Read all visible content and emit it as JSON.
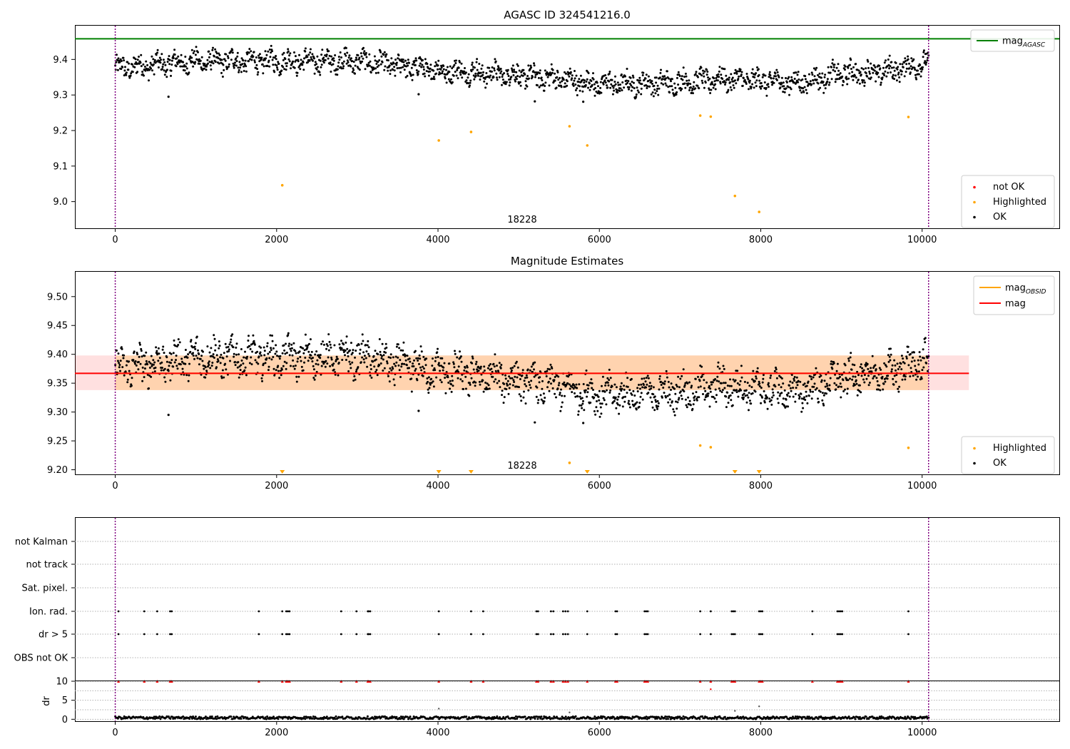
{
  "chart_data": [
    {
      "type": "scatter",
      "title": "AGASC ID 324541216.0",
      "xlim": [
        -500,
        11700
      ],
      "ylim": [
        8.925,
        9.495
      ],
      "x_ticks": [
        0,
        2000,
        4000,
        6000,
        8000,
        10000
      ],
      "y_ticks": [
        9.0,
        9.1,
        9.2,
        9.3,
        9.4
      ],
      "x_tick_labels": [
        "0",
        "2000",
        "4000",
        "6000",
        "8000",
        "10000"
      ],
      "y_tick_labels": [
        "9.0",
        "9.1",
        "9.2",
        "9.3",
        "9.4"
      ],
      "obsid_annotation": {
        "text": "18228",
        "x": 5000,
        "y": 8.95
      },
      "obs_boundaries": [
        0,
        10080
      ],
      "mag_agasc": 9.458,
      "ok_series": {
        "name": "OK",
        "color": "#000000",
        "x_max": 10080,
        "trend": [
          [
            0,
            9.375
          ],
          [
            1000,
            9.395
          ],
          [
            2000,
            9.395
          ],
          [
            3000,
            9.395
          ],
          [
            4000,
            9.37
          ],
          [
            5000,
            9.355
          ],
          [
            5500,
            9.345
          ],
          [
            6000,
            9.33
          ],
          [
            7000,
            9.335
          ],
          [
            7500,
            9.345
          ],
          [
            8000,
            9.34
          ],
          [
            8500,
            9.335
          ],
          [
            9000,
            9.36
          ],
          [
            9500,
            9.365
          ],
          [
            10080,
            9.39
          ]
        ]
      },
      "ok_outliers": [
        {
          "x": 660,
          "y": 9.295
        },
        {
          "x": 3760,
          "y": 9.302
        },
        {
          "x": 5200,
          "y": 9.282
        },
        {
          "x": 5800,
          "y": 9.281
        }
      ],
      "highlighted_points": [
        {
          "x": 2070,
          "y": 9.046
        },
        {
          "x": 4010,
          "y": 9.172
        },
        {
          "x": 4410,
          "y": 9.196
        },
        {
          "x": 5630,
          "y": 9.212
        },
        {
          "x": 5850,
          "y": 9.158
        },
        {
          "x": 7250,
          "y": 9.242
        },
        {
          "x": 7380,
          "y": 9.239
        },
        {
          "x": 7680,
          "y": 9.016
        },
        {
          "x": 7980,
          "y": 8.971
        },
        {
          "x": 9830,
          "y": 9.238
        }
      ],
      "legends": [
        {
          "entries": [
            {
              "label": "mag",
              "sub": "AGASC",
              "kind": "line",
              "color": "#008000"
            }
          ]
        },
        {
          "entries": [
            {
              "label": "not OK",
              "kind": "dot",
              "color": "#ff0000"
            },
            {
              "label": "Highlighted",
              "kind": "dot",
              "color": "#ffa500"
            },
            {
              "label": "OK",
              "kind": "dot",
              "color": "#000000"
            }
          ]
        }
      ]
    },
    {
      "type": "scatter",
      "title": "Magnitude Estimates",
      "xlim": [
        -500,
        11700
      ],
      "ylim": [
        9.192,
        9.543
      ],
      "x_ticks": [
        0,
        2000,
        4000,
        6000,
        8000,
        10000
      ],
      "y_ticks": [
        9.2,
        9.25,
        9.3,
        9.35,
        9.4,
        9.45,
        9.5
      ],
      "x_tick_labels": [
        "0",
        "2000",
        "4000",
        "6000",
        "8000",
        "10000"
      ],
      "y_tick_labels": [
        "9.20",
        "9.25",
        "9.30",
        "9.35",
        "9.40",
        "9.45",
        "9.50"
      ],
      "obsid_annotation": {
        "text": "18228",
        "x": 5000,
        "y": 9.208
      },
      "obs_boundaries": [
        0,
        10080
      ],
      "mag": 9.367,
      "mag_band": [
        9.338,
        9.398
      ],
      "band_x": [
        -500,
        10580
      ],
      "mag_obsid": {
        "value": 9.367,
        "x": [
          0,
          10080
        ],
        "band": [
          9.338,
          9.398
        ]
      },
      "ok_series": {
        "name": "OK",
        "color": "#000000",
        "x_max": 10080,
        "trend": [
          [
            0,
            9.375
          ],
          [
            1000,
            9.395
          ],
          [
            2000,
            9.395
          ],
          [
            3000,
            9.395
          ],
          [
            4000,
            9.37
          ],
          [
            5000,
            9.355
          ],
          [
            5500,
            9.345
          ],
          [
            6000,
            9.33
          ],
          [
            7000,
            9.335
          ],
          [
            7500,
            9.345
          ],
          [
            8000,
            9.34
          ],
          [
            8500,
            9.335
          ],
          [
            9000,
            9.36
          ],
          [
            9500,
            9.365
          ],
          [
            10080,
            9.39
          ]
        ]
      },
      "ok_outliers": [
        {
          "x": 660,
          "y": 9.295
        },
        {
          "x": 3760,
          "y": 9.302
        },
        {
          "x": 5200,
          "y": 9.282
        },
        {
          "x": 5800,
          "y": 9.281
        }
      ],
      "highlighted_points": [
        {
          "x": 5630,
          "y": 9.212
        },
        {
          "x": 7250,
          "y": 9.242
        },
        {
          "x": 7380,
          "y": 9.239
        },
        {
          "x": 9830,
          "y": 9.238
        }
      ],
      "clipped_markers_x": [
        2070,
        4010,
        4410,
        5850,
        7680,
        7980
      ],
      "legends": [
        {
          "entries": [
            {
              "label": "mag",
              "sub": "OBSID",
              "kind": "line",
              "color": "#ffa500"
            },
            {
              "label": "mag",
              "kind": "line",
              "color": "#ff0000"
            }
          ]
        },
        {
          "entries": [
            {
              "label": "Highlighted",
              "kind": "dot",
              "color": "#ffa500"
            },
            {
              "label": "OK",
              "kind": "dot",
              "color": "#000000"
            }
          ]
        }
      ]
    },
    {
      "type": "scatter",
      "xlim": [
        -500,
        11700
      ],
      "flag_rows": [
        "not Kalman",
        "not track",
        "Sat. pixel.",
        "Ion. rad.",
        "dr > 5",
        "OBS not OK"
      ],
      "flagged_x": [
        40,
        360,
        520,
        680,
        700,
        1780,
        2070,
        2120,
        2140,
        2160,
        2800,
        2990,
        3130,
        3140,
        3160,
        4010,
        4410,
        4560,
        5220,
        5240,
        5400,
        5430,
        5550,
        5580,
        5610,
        5850,
        6200,
        6220,
        6560,
        6580,
        6600,
        7250,
        7380,
        7640,
        7660,
        7680,
        7980,
        8000,
        8020,
        8640,
        8950,
        8970,
        8990,
        9010,
        9830
      ],
      "obs_boundaries": [
        0,
        10080
      ],
      "dr": {
        "ylabel": "dr",
        "ylim": [
          -0.5,
          10
        ],
        "y_ticks": [
          0,
          5,
          10
        ],
        "y_tick_labels": [
          "0",
          "5",
          "10"
        ],
        "baseline_mean": 0.4,
        "spikes": [
          {
            "x": 4010,
            "y": 2.8
          },
          {
            "x": 5630,
            "y": 1.8
          },
          {
            "x": 7380,
            "y": 7.9
          },
          {
            "x": 7680,
            "y": 2.2
          },
          {
            "x": 7980,
            "y": 3.4
          }
        ],
        "clipped_color": "#ff0000",
        "x_ticks": [
          0,
          2000,
          4000,
          6000,
          8000,
          10000
        ],
        "x_tick_labels": [
          "0",
          "2000",
          "4000",
          "6000",
          "8000",
          "10000"
        ]
      }
    }
  ]
}
